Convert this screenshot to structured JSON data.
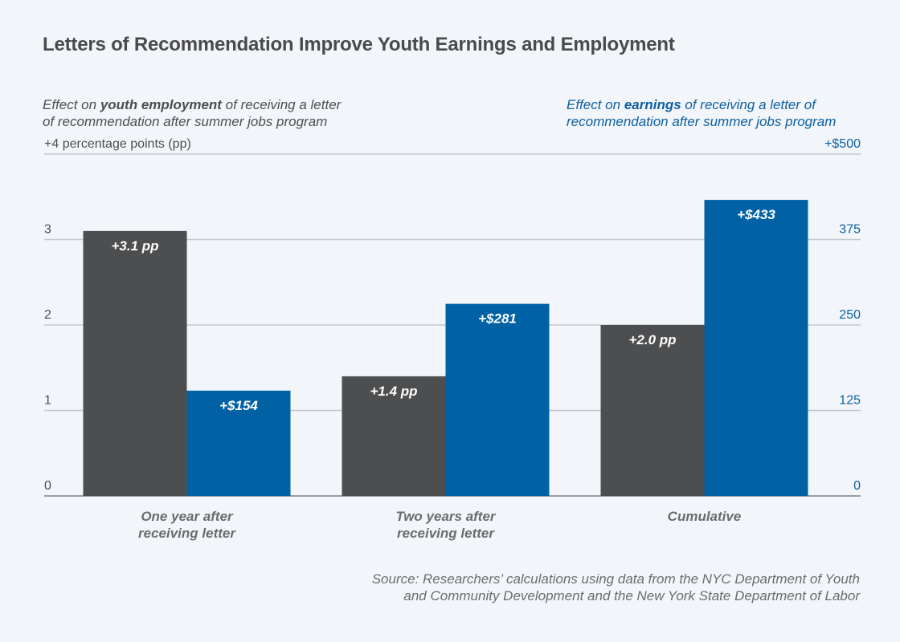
{
  "title": "Letters of Recommendation Improve Youth Earnings and Employment",
  "left_axis_title": {
    "prefix": "Effect on ",
    "bold": "youth employment",
    "suffix": " of receiving a letter",
    "line2": "of recommendation after summer jobs program"
  },
  "right_axis_title": {
    "prefix": "Effect on ",
    "bold": "earnings",
    "suffix": " of receiving a letter of",
    "line2": "recommendation after summer jobs program"
  },
  "source": {
    "line1": "Source: Researchers’ calculations using data from the NYC Department of Youth",
    "line2": "and Community Development and the New York State Department of Labor"
  },
  "colors": {
    "employment": "#4d4e50",
    "earnings": "#0061a5",
    "background": "#f2f6fa",
    "gridline": "#c4c7cb",
    "right_axis_text": "#0d5fa0"
  },
  "chart_data": {
    "type": "bar",
    "title": "Letters of Recommendation Improve Youth Earnings and Employment",
    "categories": [
      [
        "One year after",
        "receiving letter"
      ],
      [
        "Two years after",
        "receiving letter"
      ],
      [
        "Cumulative"
      ]
    ],
    "series": [
      {
        "name": "Effect on youth employment (percentage points)",
        "axis": "left",
        "values": [
          3.1,
          1.4,
          2.0
        ],
        "labels": [
          "+3.1 pp",
          "+1.4 pp",
          "+2.0 pp"
        ]
      },
      {
        "name": "Effect on earnings (dollars)",
        "axis": "right",
        "values": [
          154,
          281,
          433
        ],
        "labels": [
          "+$154",
          "+$281",
          "+$433"
        ]
      }
    ],
    "left_axis": {
      "ylim": [
        0,
        4
      ],
      "ticks": [
        0,
        1,
        2,
        3,
        4
      ],
      "tick_labels": [
        "0",
        "1",
        "2",
        "3",
        "+4 percentage points (pp)"
      ]
    },
    "right_axis": {
      "ylim": [
        0,
        500
      ],
      "ticks": [
        0,
        125,
        250,
        375,
        500
      ],
      "tick_labels": [
        "0",
        "125",
        "250",
        "375",
        "+$500"
      ]
    },
    "grid": true,
    "legend": "none (axis titles act as legend: left=employment, right=earnings)"
  }
}
